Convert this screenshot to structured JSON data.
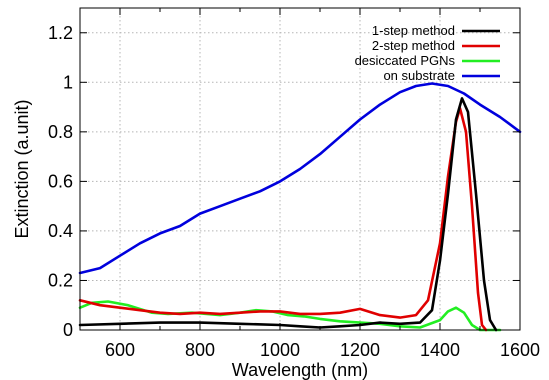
{
  "chart_data": {
    "type": "line",
    "title": "",
    "xlabel": "Wavelength (nm)",
    "ylabel": "Extinction (a.unit)",
    "xlim": [
      500,
      1600
    ],
    "ylim": [
      0,
      1.3
    ],
    "xticks": [
      600,
      800,
      1000,
      1200,
      1400,
      1600
    ],
    "xtick_labels": [
      "600",
      "800",
      "1000",
      "1200",
      "1400",
      "1600"
    ],
    "yticks": [
      0,
      0.2,
      0.4,
      0.6,
      0.8,
      1,
      1.2
    ],
    "ytick_labels": [
      "0",
      "0.2",
      "0.4",
      "0.6",
      "0.8",
      "1",
      "1.2"
    ],
    "grid": true,
    "legend_position": "top-right",
    "series": [
      {
        "name": "1-step method",
        "color": "#000000",
        "points": [
          [
            500,
            0.02
          ],
          [
            600,
            0.025
          ],
          [
            700,
            0.03
          ],
          [
            800,
            0.03
          ],
          [
            900,
            0.025
          ],
          [
            1000,
            0.02
          ],
          [
            1050,
            0.015
          ],
          [
            1100,
            0.01
          ],
          [
            1150,
            0.015
          ],
          [
            1200,
            0.02
          ],
          [
            1250,
            0.03
          ],
          [
            1300,
            0.025
          ],
          [
            1350,
            0.03
          ],
          [
            1380,
            0.08
          ],
          [
            1400,
            0.28
          ],
          [
            1420,
            0.55
          ],
          [
            1440,
            0.85
          ],
          [
            1455,
            0.935
          ],
          [
            1470,
            0.88
          ],
          [
            1490,
            0.55
          ],
          [
            1510,
            0.2
          ],
          [
            1525,
            0.04
          ],
          [
            1540,
            0.0
          ]
        ]
      },
      {
        "name": "2-step method",
        "color": "#e00000",
        "points": [
          [
            500,
            0.12
          ],
          [
            550,
            0.1
          ],
          [
            600,
            0.09
          ],
          [
            650,
            0.08
          ],
          [
            700,
            0.07
          ],
          [
            750,
            0.065
          ],
          [
            800,
            0.07
          ],
          [
            850,
            0.065
          ],
          [
            900,
            0.07
          ],
          [
            950,
            0.075
          ],
          [
            1000,
            0.075
          ],
          [
            1050,
            0.065
          ],
          [
            1100,
            0.065
          ],
          [
            1150,
            0.07
          ],
          [
            1200,
            0.085
          ],
          [
            1250,
            0.06
          ],
          [
            1300,
            0.05
          ],
          [
            1340,
            0.06
          ],
          [
            1370,
            0.12
          ],
          [
            1400,
            0.35
          ],
          [
            1420,
            0.62
          ],
          [
            1440,
            0.84
          ],
          [
            1450,
            0.895
          ],
          [
            1465,
            0.8
          ],
          [
            1480,
            0.5
          ],
          [
            1495,
            0.15
          ],
          [
            1505,
            0.02
          ],
          [
            1515,
            0.0
          ]
        ]
      },
      {
        "name": "desiccated PGNs",
        "color": "#22ee22",
        "points": [
          [
            500,
            0.09
          ],
          [
            530,
            0.11
          ],
          [
            570,
            0.115
          ],
          [
            620,
            0.1
          ],
          [
            680,
            0.07
          ],
          [
            720,
            0.065
          ],
          [
            780,
            0.07
          ],
          [
            850,
            0.06
          ],
          [
            900,
            0.07
          ],
          [
            940,
            0.08
          ],
          [
            980,
            0.075
          ],
          [
            1020,
            0.06
          ],
          [
            1060,
            0.055
          ],
          [
            1100,
            0.045
          ],
          [
            1150,
            0.035
          ],
          [
            1200,
            0.03
          ],
          [
            1250,
            0.025
          ],
          [
            1300,
            0.015
          ],
          [
            1350,
            0.01
          ],
          [
            1400,
            0.04
          ],
          [
            1420,
            0.075
          ],
          [
            1440,
            0.09
          ],
          [
            1460,
            0.07
          ],
          [
            1480,
            0.02
          ],
          [
            1500,
            0.0
          ],
          [
            1550,
            0.0
          ]
        ]
      },
      {
        "name": "on substrate",
        "color": "#0000dd",
        "points": [
          [
            500,
            0.23
          ],
          [
            550,
            0.25
          ],
          [
            600,
            0.3
          ],
          [
            650,
            0.35
          ],
          [
            700,
            0.39
          ],
          [
            750,
            0.42
          ],
          [
            800,
            0.47
          ],
          [
            850,
            0.5
          ],
          [
            900,
            0.53
          ],
          [
            950,
            0.56
          ],
          [
            1000,
            0.6
          ],
          [
            1050,
            0.65
          ],
          [
            1100,
            0.71
          ],
          [
            1150,
            0.78
          ],
          [
            1200,
            0.85
          ],
          [
            1250,
            0.91
          ],
          [
            1300,
            0.96
          ],
          [
            1340,
            0.985
          ],
          [
            1380,
            0.995
          ],
          [
            1420,
            0.985
          ],
          [
            1460,
            0.955
          ],
          [
            1500,
            0.91
          ],
          [
            1550,
            0.86
          ],
          [
            1600,
            0.8
          ]
        ]
      }
    ]
  }
}
